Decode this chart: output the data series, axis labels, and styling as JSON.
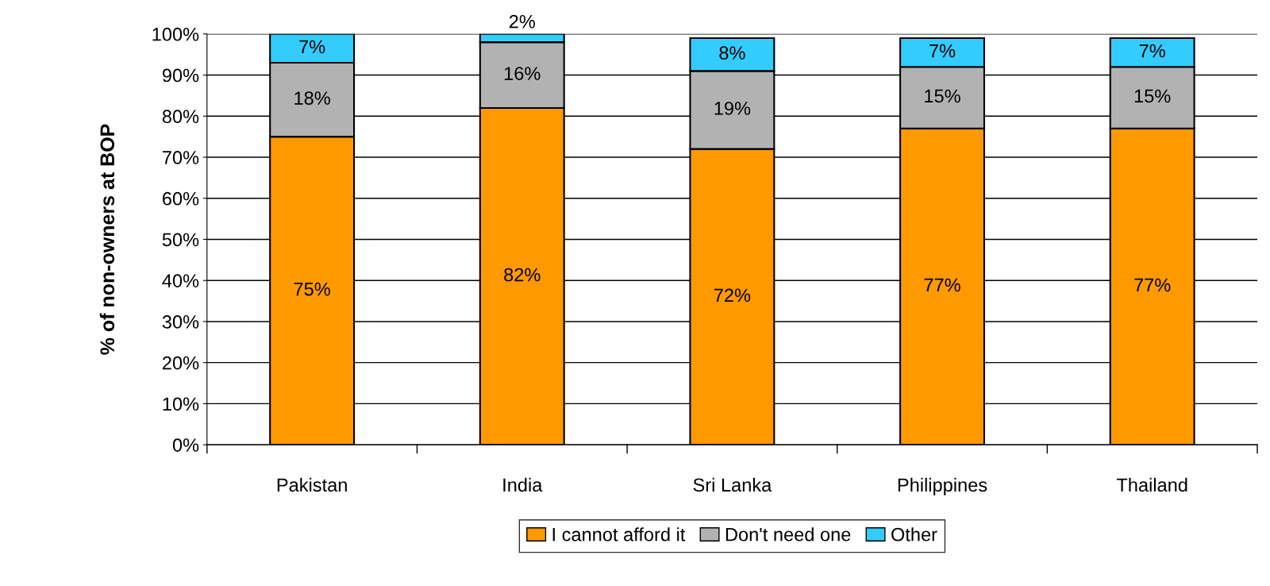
{
  "chart_data": {
    "type": "bar",
    "stacked": true,
    "ylabel": "% of non-owners at BOP",
    "categories": [
      "Pakistan",
      "India",
      "Sri Lanka",
      "Philippines",
      "Thailand"
    ],
    "series": [
      {
        "name": "I cannot afford it",
        "color": "#ff9900",
        "values": [
          75,
          82,
          72,
          77,
          77
        ],
        "value_labels": [
          "75%",
          "82%",
          "72%",
          "77%",
          "77%"
        ]
      },
      {
        "name": "Don't need one",
        "color": "#b2b2b2",
        "values": [
          18,
          16,
          19,
          15,
          15
        ],
        "value_labels": [
          "18%",
          "16%",
          "19%",
          "15%",
          "15%"
        ]
      },
      {
        "name": "Other",
        "color": "#33ccff",
        "values": [
          7,
          2,
          8,
          7,
          7
        ],
        "value_labels": [
          "7%",
          "2%",
          "8%",
          "7%",
          "7%"
        ]
      }
    ],
    "ylim": [
      0,
      100
    ],
    "yticks": [
      {
        "value": 0,
        "label": "0%"
      },
      {
        "value": 10,
        "label": "10%"
      },
      {
        "value": 20,
        "label": "20%"
      },
      {
        "value": 30,
        "label": "30%"
      },
      {
        "value": 40,
        "label": "40%"
      },
      {
        "value": 50,
        "label": "50%"
      },
      {
        "value": 60,
        "label": "60%"
      },
      {
        "value": 70,
        "label": "70%"
      },
      {
        "value": 80,
        "label": "80%"
      },
      {
        "value": 90,
        "label": "90%"
      },
      {
        "value": 100,
        "label": "100%"
      }
    ],
    "grid": "y",
    "legend": "bottom"
  }
}
